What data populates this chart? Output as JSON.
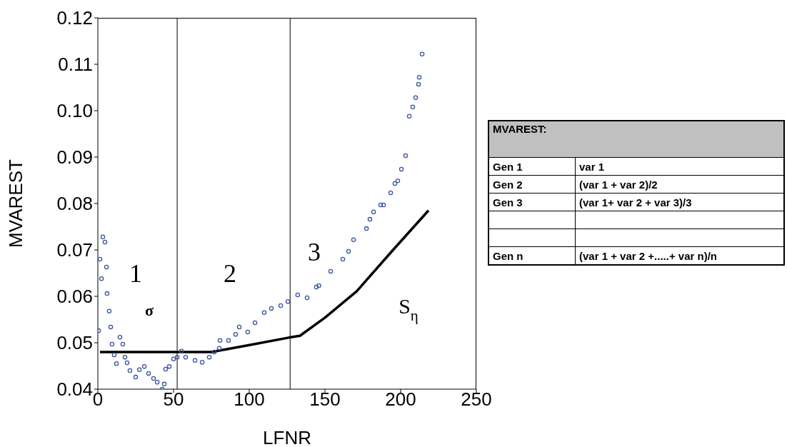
{
  "chart_data": [
    {
      "type": "scatter",
      "xlabel": "LFNR",
      "ylabel": "MVAREST",
      "xlim": [
        0,
        250
      ],
      "ylim": [
        0.04,
        0.12
      ],
      "xticks": [
        0,
        50,
        100,
        150,
        200,
        250
      ],
      "yticks": [
        0.04,
        0.05,
        0.06,
        0.07,
        0.08,
        0.09,
        {
          "value": 0.1,
          "label": "0.10"
        },
        0.11,
        0.12
      ],
      "grid": false,
      "series": [
        {
          "type": "scatter",
          "color": "#3a55a0",
          "marker": "circle",
          "x": [
            0.5,
            1.4,
            2.4,
            3.3,
            4.7,
            5.7,
            6.1,
            7.5,
            8.5,
            9.4,
            10.8,
            12.3,
            14.6,
            16.5,
            17.9,
            19.3,
            21.2,
            25,
            27.4,
            30.7,
            33.5,
            36.8,
            39.2,
            42.5,
            43.9,
            44.8,
            47.2,
            50,
            52.4,
            55.2,
            58,
            64.2,
            68.9,
            73.6,
            76.9,
            80.2,
            80.7,
            86.3,
            91,
            93.4,
            99,
            103.8,
            109.9,
            114.6,
            120.8,
            125.5,
            132,
            138.2,
            144.3,
            146,
            153.8,
            161.8,
            165.6,
            168.9,
            177.4,
            179.7,
            182.1,
            186.8,
            188.7,
            193.4,
            196.2,
            198.1,
            200.5,
            203.3,
            205.7,
            208,
            209.9,
            211.8,
            212.3,
            214.2
          ],
          "values": [
            0.0526,
            0.068,
            0.0638,
            0.0728,
            0.0717,
            0.0663,
            0.0606,
            0.0568,
            0.0534,
            0.0497,
            0.0474,
            0.0455,
            0.0512,
            0.0497,
            0.0469,
            0.0457,
            0.044,
            0.0426,
            0.0442,
            0.0449,
            0.0434,
            0.0423,
            0.0415,
            0.04,
            0.0411,
            0.0443,
            0.0449,
            0.0465,
            0.0469,
            0.0482,
            0.0469,
            0.0462,
            0.0458,
            0.0469,
            0.048,
            0.0488,
            0.0505,
            0.0505,
            0.0518,
            0.0534,
            0.0523,
            0.0543,
            0.0565,
            0.0574,
            0.058,
            0.0589,
            0.0603,
            0.0597,
            0.062,
            0.0623,
            0.0654,
            0.068,
            0.0697,
            0.0722,
            0.0746,
            0.0766,
            0.0782,
            0.0797,
            0.0797,
            0.0823,
            0.0843,
            0.0849,
            0.0874,
            0.0903,
            0.0988,
            0.1008,
            0.1028,
            0.1057,
            0.1072,
            0.1122
          ]
        },
        {
          "type": "line",
          "color": "#000000",
          "marker": "none",
          "line_style": "solid",
          "x": [
            1.4,
            25,
            50,
            75,
            100,
            126,
            133.5,
            150,
            171,
            195,
            218.4
          ],
          "values": [
            0.048,
            0.048,
            0.048,
            0.048,
            0.0495,
            0.0511,
            0.0515,
            0.0554,
            0.0611,
            0.07,
            0.0785
          ]
        }
      ],
      "ref_lines": [
        {
          "axis": "x",
          "value": 52.4,
          "color": "#000000"
        },
        {
          "axis": "x",
          "value": 127,
          "color": "#000000"
        }
      ],
      "annotations": [
        "1",
        "σ",
        "2",
        "3",
        "S$_{η}$"
      ]
    },
    {
      "type": "other",
      "title": "MVAREST:",
      "cell_labels": [
        [
          "Gen 1",
          "var 1"
        ],
        [
          "Gen 2",
          "(var 1 + var 2)/2"
        ],
        [
          "Gen 3",
          "(var 1+ var 2 + var 3)/3"
        ],
        [
          null,
          null
        ],
        [
          null,
          null
        ],
        [
          "Gen n",
          "(var 1 + var 2 +.....+ var n)/n"
        ]
      ]
    }
  ]
}
